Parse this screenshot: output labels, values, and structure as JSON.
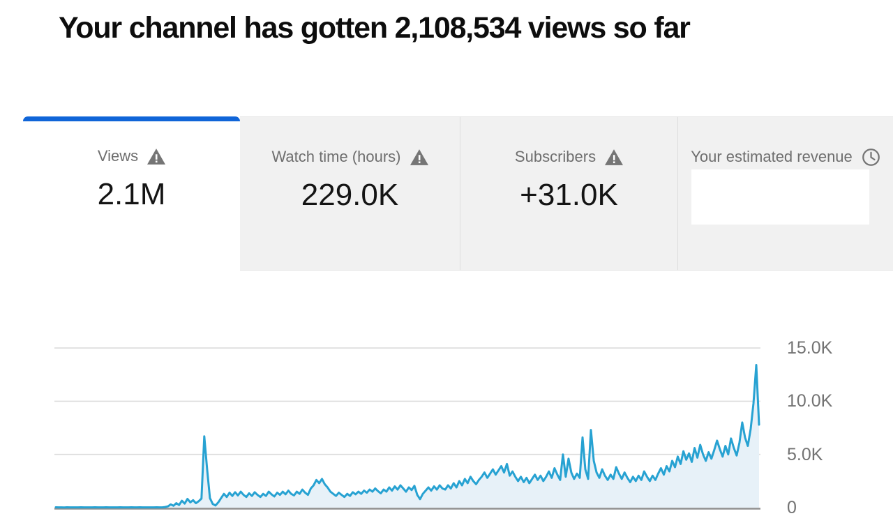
{
  "header": {
    "title": "Your channel has gotten 2,108,534 views so far"
  },
  "metric_tabs": [
    {
      "label": "Views",
      "value": "2.1M",
      "icon": "warning",
      "selected": true
    },
    {
      "label": "Watch time (hours)",
      "value": "229.0K",
      "icon": "warning",
      "selected": false
    },
    {
      "label": "Subscribers",
      "value": "+31.0K",
      "icon": "warning",
      "selected": false
    },
    {
      "label": "Your estimated revenue",
      "value": "",
      "icon": "clock",
      "selected": false,
      "value_redacted": true
    }
  ],
  "colors": {
    "accent": "#1065d8",
    "line": "#27a2d2",
    "fill": "#e7f1f8",
    "grid": "#dcdcdc",
    "axis": "#8f8f8f",
    "tabbg": "#f1f1f1",
    "labelgray": "#6e6e6e",
    "valuedark": "#141414",
    "icongray": "#757575",
    "tickgray": "#737373"
  },
  "chart_data": {
    "type": "area",
    "series_name": "Views",
    "ylim": [
      0,
      15000
    ],
    "grid": true,
    "legend": false,
    "y_ticks": [
      {
        "label": "15.0K",
        "value": 15000
      },
      {
        "label": "10.0K",
        "value": 10000
      },
      {
        "label": "5.0K",
        "value": 5000
      },
      {
        "label": "0",
        "value": 0
      }
    ],
    "values": [
      30,
      25,
      28,
      22,
      30,
      26,
      24,
      28,
      25,
      30,
      27,
      24,
      29,
      26,
      31,
      25,
      28,
      23,
      30,
      27,
      25,
      29,
      26,
      30,
      24,
      28,
      25,
      31,
      27,
      24,
      30,
      26,
      29,
      25,
      28,
      24,
      30,
      27,
      25,
      60,
      120,
      300,
      180,
      420,
      250,
      650,
      380,
      820,
      500,
      700,
      420,
      600,
      850,
      6700,
      3600,
      900,
      350,
      200,
      500,
      900,
      1300,
      1000,
      1400,
      1100,
      1450,
      1150,
      1500,
      1200,
      1000,
      1350,
      1100,
      1450,
      1200,
      1000,
      1300,
      1100,
      1500,
      1250,
      1050,
      1400,
      1200,
      1500,
      1250,
      1600,
      1300,
      1150,
      1500,
      1300,
      1700,
      1400,
      1200,
      1800,
      2100,
      2600,
      2300,
      2700,
      2200,
      1900,
      1500,
      1300,
      1100,
      1400,
      1200,
      1000,
      1300,
      1100,
      1450,
      1250,
      1500,
      1300,
      1600,
      1400,
      1700,
      1500,
      1800,
      1550,
      1350,
      1700,
      1500,
      1900,
      1600,
      2000,
      1700,
      2100,
      1800,
      1500,
      1900,
      1650,
      2050,
      1200,
      800,
      1300,
      1600,
      1900,
      1600,
      2000,
      1700,
      2100,
      1800,
      1700,
      2100,
      1800,
      2300,
      1900,
      2500,
      2100,
      2700,
      2300,
      2900,
      2500,
      2200,
      2600,
      2900,
      3300,
      2800,
      3200,
      3600,
      3100,
      3500,
      3900,
      3300,
      4100,
      3000,
      3400,
      2900,
      2500,
      2900,
      2400,
      2800,
      2300,
      2700,
      3100,
      2600,
      3000,
      2500,
      2900,
      3400,
      2800,
      3700,
      3100,
      2600,
      5000,
      2900,
      4600,
      3300,
      2700,
      3200,
      2800,
      6600,
      3600,
      2700,
      7300,
      4400,
      3300,
      2800,
      3600,
      3000,
      2600,
      3100,
      2700,
      3800,
      3200,
      2700,
      3300,
      2800,
      2400,
      2900,
      2500,
      3000,
      2600,
      3400,
      2900,
      2500,
      3000,
      2600,
      3200,
      3700,
      3100,
      3900,
      3400,
      4400,
      3800,
      4800,
      4100,
      5300,
      4500,
      5100,
      4300,
      5600,
      4700,
      5900,
      5000,
      4400,
      5200,
      4600,
      5400,
      6300,
      5500,
      4800,
      5800,
      5000,
      6500,
      5600,
      4900,
      6100,
      8000,
      6600,
      5800,
      7400,
      9800,
      13400,
      7800
    ]
  }
}
